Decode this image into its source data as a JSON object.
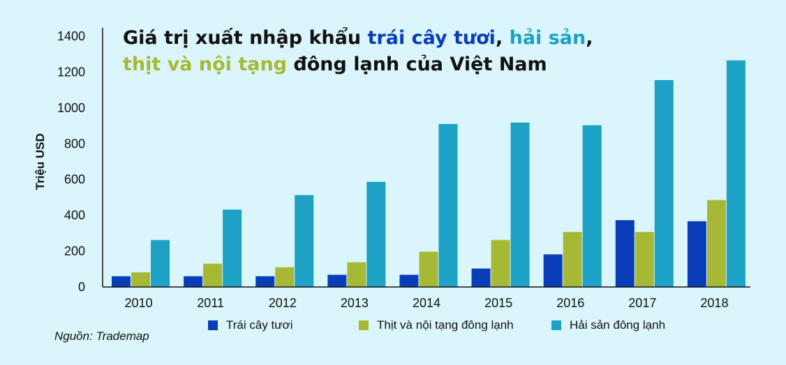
{
  "title": {
    "part1": "Giá trị xuất nhập khẩu ",
    "part2": "trái cây tươi",
    "part3": ", ",
    "part4": "hải sản",
    "part5": ",",
    "part6": "thịt và nội tạng",
    "part7": " đông lạnh của Việt Nam"
  },
  "source": "Nguồn: Trademap",
  "colors": {
    "background": "#daf5fb",
    "fruit": "#0a3db8",
    "meat": "#a7b934",
    "seafood": "#1da1c4"
  },
  "chart_data": {
    "type": "bar",
    "title": "Giá trị xuất nhập khẩu trái cây tươi, hải sản, thịt và nội tạng đông lạnh của Việt Nam",
    "xlabel": "",
    "ylabel": "Triệu USD",
    "ylim": [
      0,
      1400
    ],
    "yticks": [
      0,
      200,
      400,
      600,
      800,
      1000,
      1200,
      1400
    ],
    "categories": [
      "2010",
      "2011",
      "2012",
      "2013",
      "2014",
      "2015",
      "2016",
      "2017",
      "2018"
    ],
    "series": [
      {
        "name": "Trái cây tươi",
        "values": [
          60,
          60,
          60,
          68,
          68,
          103,
          182,
          373,
          367
        ]
      },
      {
        "name": "Thịt và nội tạng đông lạnh",
        "values": [
          82,
          130,
          110,
          138,
          197,
          262,
          307,
          307,
          485
        ]
      },
      {
        "name": "Hải sản đông lạnh",
        "values": [
          262,
          432,
          513,
          587,
          910,
          918,
          903,
          1155,
          1265
        ]
      }
    ],
    "grid": false,
    "legend_position": "bottom"
  }
}
